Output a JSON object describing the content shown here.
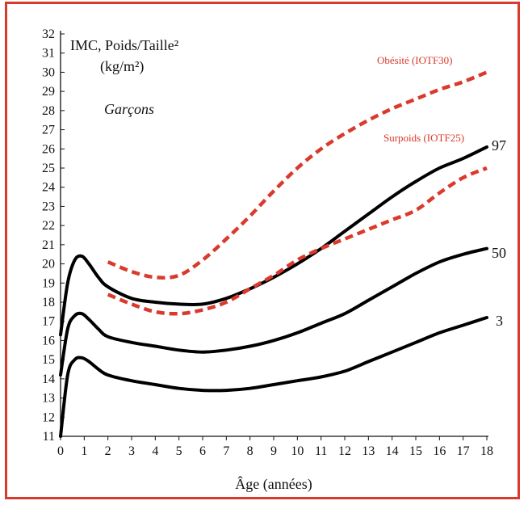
{
  "chart_data": {
    "type": "line",
    "title": "IMC, Poids/Taille²",
    "units": "(kg/m²)",
    "subtitle": "Garçons",
    "xlabel": "Âge (années)",
    "ylabel": "",
    "xlim": [
      0,
      18
    ],
    "ylim": [
      11,
      32
    ],
    "x_ticks": [
      "0",
      "1",
      "2",
      "3",
      "4",
      "5",
      "6",
      "7",
      "8",
      "9",
      "10",
      "11",
      "12",
      "13",
      "14",
      "15",
      "16",
      "17",
      "18"
    ],
    "y_ticks": [
      "11",
      "12",
      "13",
      "14",
      "15",
      "16",
      "17",
      "18",
      "19",
      "20",
      "21",
      "22",
      "23",
      "24",
      "25",
      "26",
      "27",
      "28",
      "29",
      "30",
      "31",
      "32"
    ],
    "grid": false,
    "series": [
      {
        "name": "97",
        "style": "solid",
        "color": "#000000",
        "x": [
          0,
          0.3,
          0.6,
          0.9,
          1.2,
          1.6,
          2,
          3,
          4,
          5,
          6,
          7,
          8,
          9,
          10,
          11,
          12,
          13,
          14,
          15,
          16,
          17,
          18
        ],
        "y": [
          16.3,
          19.0,
          20.2,
          20.4,
          20.0,
          19.3,
          18.8,
          18.2,
          18.0,
          17.9,
          17.9,
          18.2,
          18.7,
          19.3,
          20.0,
          20.8,
          21.7,
          22.6,
          23.5,
          24.3,
          25.0,
          25.5,
          26.1
        ]
      },
      {
        "name": "50",
        "style": "solid",
        "color": "#000000",
        "x": [
          0,
          0.3,
          0.6,
          0.9,
          1.2,
          1.6,
          2,
          3,
          4,
          5,
          6,
          7,
          8,
          9,
          10,
          11,
          12,
          13,
          14,
          15,
          16,
          17,
          18
        ],
        "y": [
          14.2,
          16.6,
          17.3,
          17.4,
          17.1,
          16.6,
          16.2,
          15.9,
          15.7,
          15.5,
          15.4,
          15.5,
          15.7,
          16.0,
          16.4,
          16.9,
          17.4,
          18.1,
          18.8,
          19.5,
          20.1,
          20.5,
          20.8
        ]
      },
      {
        "name": "3",
        "style": "solid",
        "color": "#000000",
        "x": [
          0,
          0.3,
          0.6,
          0.9,
          1.2,
          1.6,
          2,
          3,
          4,
          5,
          6,
          7,
          8,
          9,
          10,
          11,
          12,
          13,
          14,
          15,
          16,
          17,
          18
        ],
        "y": [
          11.0,
          14.2,
          15.0,
          15.1,
          14.9,
          14.5,
          14.2,
          13.9,
          13.7,
          13.5,
          13.4,
          13.4,
          13.5,
          13.7,
          13.9,
          14.1,
          14.4,
          14.9,
          15.4,
          15.9,
          16.4,
          16.8,
          17.2
        ]
      },
      {
        "name": "Obésité (IOTF30)",
        "style": "dashed",
        "color": "#d93a2b",
        "x": [
          2,
          3,
          4,
          5,
          6,
          7,
          8,
          9,
          10,
          11,
          12,
          13,
          14,
          15,
          16,
          17,
          18
        ],
        "y": [
          20.1,
          19.6,
          19.3,
          19.4,
          20.2,
          21.3,
          22.5,
          23.8,
          25.0,
          26.0,
          26.8,
          27.5,
          28.1,
          28.6,
          29.1,
          29.5,
          30.0
        ]
      },
      {
        "name": "Surpoids (IOTF25)",
        "style": "dashed",
        "color": "#d93a2b",
        "x": [
          2,
          3,
          4,
          5,
          6,
          7,
          8,
          9,
          10,
          11,
          12,
          13,
          14,
          15,
          16,
          17,
          18
        ],
        "y": [
          18.4,
          17.9,
          17.5,
          17.4,
          17.6,
          18.0,
          18.7,
          19.4,
          20.2,
          20.8,
          21.3,
          21.8,
          22.3,
          22.8,
          23.7,
          24.5,
          25.0
        ]
      }
    ],
    "annotations": {
      "obesite": "Obésité (IOTF30)",
      "surpoids": "Surpoids (IOTF25)",
      "p97": "97",
      "p50": "50",
      "p3": "3"
    },
    "colors": {
      "frame": "#d93a2b",
      "dashed": "#d93a2b",
      "solid": "#000000"
    }
  }
}
